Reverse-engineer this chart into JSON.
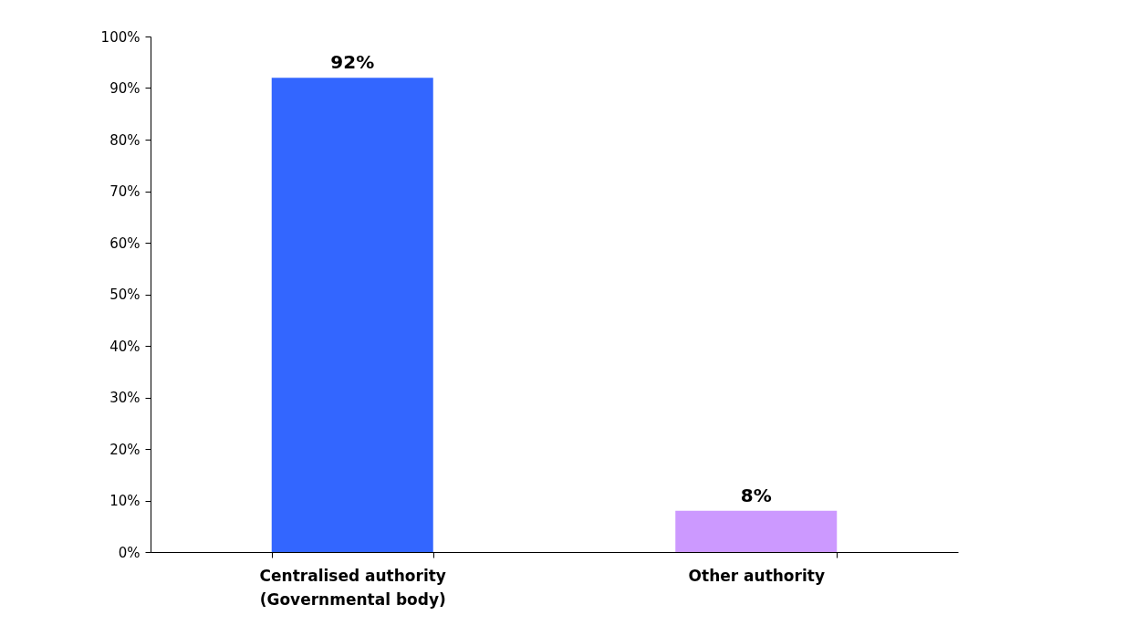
{
  "chart_data": {
    "type": "bar",
    "categories": [
      "Centralised authority\n(Governmental body)",
      "Other authority"
    ],
    "values": [
      92,
      8
    ],
    "colors": [
      "#3366ff",
      "#cc99ff"
    ],
    "value_labels": [
      "92%",
      "8%"
    ],
    "ylim": [
      0,
      100
    ],
    "yticks": [
      {
        "value": 0,
        "label": "0%"
      },
      {
        "value": 10,
        "label": "10%"
      },
      {
        "value": 20,
        "label": "20%"
      },
      {
        "value": 30,
        "label": "30%"
      },
      {
        "value": 40,
        "label": "40%"
      },
      {
        "value": 50,
        "label": "50%"
      },
      {
        "value": 60,
        "label": "60%"
      },
      {
        "value": 70,
        "label": "70%"
      },
      {
        "value": 80,
        "label": "80%"
      },
      {
        "value": 90,
        "label": "90%"
      },
      {
        "value": 100,
        "label": "100%"
      }
    ],
    "grid": false
  }
}
